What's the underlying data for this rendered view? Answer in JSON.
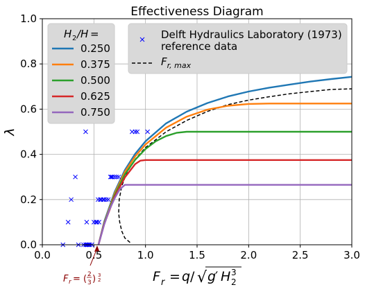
{
  "chart_data": {
    "type": "line",
    "title": "Effectiveness Diagram",
    "xlabel": "F_r = q/√(g′H₂³)",
    "ylabel": "λ",
    "xlim": [
      0.0,
      3.0
    ],
    "ylim": [
      0.0,
      1.0
    ],
    "xticks": [
      "0.0",
      "0.5",
      "1.0",
      "1.5",
      "2.0",
      "2.5",
      "3.0"
    ],
    "yticks": [
      "0.0",
      "0.2",
      "0.4",
      "0.6",
      "0.8",
      "1.0"
    ],
    "grid": true,
    "legend_title": "H₂/H =",
    "legend_placement": "top-left",
    "series": [
      {
        "name": "0.250",
        "color": "#1f77b4",
        "x": [
          0.544,
          0.6,
          0.7,
          0.8,
          0.9,
          1.0,
          1.2,
          1.4,
          1.6,
          1.8,
          2.0,
          2.2,
          2.4,
          2.6,
          2.8,
          3.0
        ],
        "y": [
          0.0,
          0.102,
          0.233,
          0.33,
          0.402,
          0.458,
          0.537,
          0.589,
          0.627,
          0.656,
          0.678,
          0.695,
          0.709,
          0.722,
          0.733,
          0.743
        ]
      },
      {
        "name": "0.375",
        "color": "#ff7f0e",
        "x": [
          0.544,
          0.6,
          0.7,
          0.8,
          0.9,
          1.0,
          1.2,
          1.4,
          1.6,
          1.8,
          2.0,
          2.2,
          3.0
        ],
        "y": [
          0.0,
          0.098,
          0.226,
          0.322,
          0.391,
          0.444,
          0.518,
          0.567,
          0.598,
          0.615,
          0.623,
          0.625,
          0.625
        ]
      },
      {
        "name": "0.500",
        "color": "#2ca02c",
        "x": [
          0.544,
          0.6,
          0.7,
          0.8,
          0.9,
          1.0,
          1.1,
          1.2,
          1.3,
          1.4,
          3.0
        ],
        "y": [
          0.0,
          0.095,
          0.219,
          0.311,
          0.376,
          0.424,
          0.458,
          0.481,
          0.495,
          0.5,
          0.5
        ]
      },
      {
        "name": "0.625",
        "color": "#d62728",
        "x": [
          0.544,
          0.6,
          0.7,
          0.8,
          0.9,
          0.95,
          1.0,
          3.0
        ],
        "y": [
          0.0,
          0.092,
          0.212,
          0.298,
          0.357,
          0.372,
          0.375,
          0.375
        ]
      },
      {
        "name": "0.750",
        "color": "#9467bd",
        "x": [
          0.544,
          0.6,
          0.65,
          0.7,
          0.75,
          0.8,
          3.0
        ],
        "y": [
          0.0,
          0.09,
          0.155,
          0.205,
          0.245,
          0.265,
          0.265
        ]
      }
    ],
    "fr_max_curve": {
      "name": "F_{r,max}",
      "color": "#000000",
      "style": "dashed",
      "x": [
        0.85,
        0.8,
        0.77,
        0.75,
        0.74,
        0.745,
        0.77,
        0.82,
        0.9,
        1.0,
        1.2,
        1.4,
        1.6,
        1.8,
        2.0,
        2.2,
        2.4,
        2.6,
        2.8,
        3.0
      ],
      "y": [
        0.01,
        0.03,
        0.06,
        0.1,
        0.14,
        0.2,
        0.26,
        0.32,
        0.378,
        0.43,
        0.5,
        0.55,
        0.59,
        0.62,
        0.64,
        0.655,
        0.668,
        0.678,
        0.687,
        0.69
      ]
    },
    "reference_data": {
      "name": "Delft Hydraulics Laboratory (1973) reference data",
      "marker": "x",
      "color": "#0000ff",
      "x": [
        0.2,
        0.25,
        0.28,
        0.32,
        0.35,
        0.4,
        0.42,
        0.44,
        0.45,
        0.46,
        0.48,
        0.42,
        0.43,
        0.43,
        0.5,
        0.52,
        0.53,
        0.55,
        0.54,
        0.56,
        0.57,
        0.59,
        0.6,
        0.62,
        0.64,
        0.66,
        0.67,
        0.68,
        0.7,
        0.72,
        0.74,
        0.87,
        0.9,
        0.92,
        1.02
      ],
      "y": [
        0.0,
        0.1,
        0.2,
        0.3,
        0.0,
        0.0,
        0.0,
        0.0,
        0.0,
        0.0,
        0.0,
        0.5,
        0.1,
        0.0,
        0.1,
        0.1,
        0.1,
        0.1,
        0.2,
        0.2,
        0.2,
        0.2,
        0.2,
        0.2,
        0.2,
        0.3,
        0.3,
        0.3,
        0.3,
        0.3,
        0.3,
        0.5,
        0.5,
        0.5,
        0.5
      ]
    },
    "legend2": {
      "ref_line1": "Delft Hydraulics Laboratory (1973)",
      "ref_line2": "reference data",
      "frmax_main": "F",
      "frmax_sub": "r, max"
    },
    "annotation": {
      "text": "F_r = (2/3)^(3/2)",
      "x": 0.544,
      "y": 0.0,
      "color": "#8b0000"
    }
  }
}
